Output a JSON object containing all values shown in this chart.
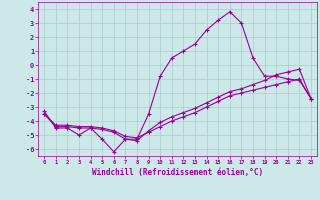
{
  "xlabel": "Windchill (Refroidissement éolien,°C)",
  "bg_color": "#cce8e8",
  "line_color": "#990099",
  "grid_color": "#aacccc",
  "xlim": [
    -0.5,
    23.5
  ],
  "ylim": [
    -6.5,
    4.5
  ],
  "xticks": [
    0,
    1,
    2,
    3,
    4,
    5,
    6,
    7,
    8,
    9,
    10,
    11,
    12,
    13,
    14,
    15,
    16,
    17,
    18,
    19,
    20,
    21,
    22,
    23
  ],
  "yticks": [
    -6,
    -5,
    -4,
    -3,
    -2,
    -1,
    0,
    1,
    2,
    3,
    4
  ],
  "line1_x": [
    0,
    1,
    2,
    3,
    4,
    5,
    6,
    7,
    8,
    9,
    10,
    11,
    12,
    13,
    14,
    15,
    16,
    17,
    18,
    19,
    20,
    21,
    22,
    23
  ],
  "line1_y": [
    -3.3,
    -4.5,
    -4.5,
    -5.0,
    -4.5,
    -5.3,
    -6.2,
    -5.3,
    -5.3,
    -3.5,
    -0.8,
    0.5,
    1.0,
    1.5,
    2.5,
    3.2,
    3.8,
    3.0,
    0.5,
    -0.8,
    -0.8,
    -1.0,
    -1.1,
    -2.4
  ],
  "line2_x": [
    0,
    1,
    2,
    3,
    4,
    5,
    6,
    7,
    8,
    9,
    10,
    11,
    12,
    13,
    14,
    15,
    16,
    17,
    18,
    19,
    20,
    21,
    22,
    23
  ],
  "line2_y": [
    -3.5,
    -4.4,
    -4.4,
    -4.5,
    -4.5,
    -4.6,
    -4.8,
    -5.3,
    -5.4,
    -4.7,
    -4.1,
    -3.7,
    -3.4,
    -3.1,
    -2.7,
    -2.3,
    -1.9,
    -1.7,
    -1.4,
    -1.1,
    -0.7,
    -0.5,
    -0.3,
    -2.4
  ],
  "line3_x": [
    0,
    1,
    2,
    3,
    4,
    5,
    6,
    7,
    8,
    9,
    10,
    11,
    12,
    13,
    14,
    15,
    16,
    17,
    18,
    19,
    20,
    21,
    22,
    23
  ],
  "line3_y": [
    -3.5,
    -4.3,
    -4.3,
    -4.4,
    -4.4,
    -4.5,
    -4.7,
    -5.1,
    -5.2,
    -4.8,
    -4.4,
    -4.0,
    -3.7,
    -3.4,
    -3.0,
    -2.6,
    -2.2,
    -2.0,
    -1.8,
    -1.6,
    -1.4,
    -1.2,
    -1.0,
    -2.4
  ]
}
